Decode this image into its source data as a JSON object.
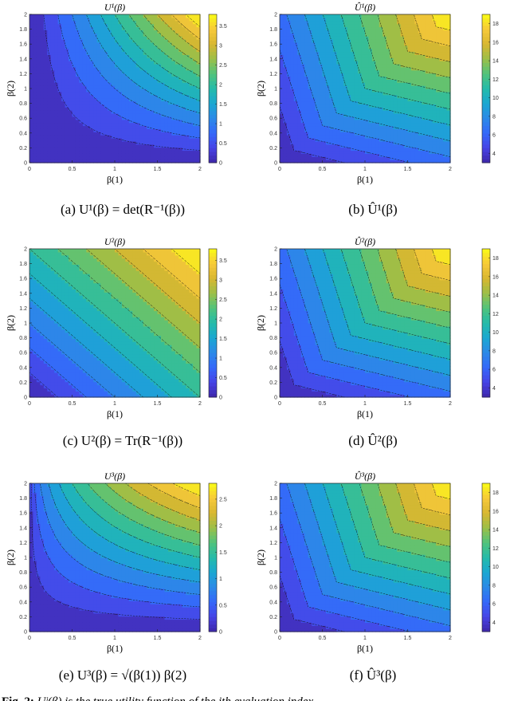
{
  "panels": [
    {
      "id": "a",
      "title": "U¹(β)",
      "caption": "(a) U¹(β) = det(R⁻¹(β))",
      "xlabel": "β(1)",
      "ylabel": "β(2)",
      "xticks": [
        "0",
        "0.5",
        "1",
        "1.5",
        "2"
      ],
      "yticks": [
        "0",
        "0.2",
        "0.4",
        "0.6",
        "0.8",
        "1",
        "1.2",
        "1.4",
        "1.6",
        "1.8",
        "2"
      ],
      "cbticks": [
        "0",
        "0.5",
        "1",
        "1.5",
        "2",
        "2.5",
        "3",
        "3.5"
      ],
      "cbrange": [
        0,
        3.8
      ],
      "fn": "prod"
    },
    {
      "id": "b",
      "title": "Û¹(β)",
      "caption": "(b) Û¹(β)",
      "xlabel": "β(1)",
      "ylabel": "β(2)",
      "xticks": [
        "0",
        "0.5",
        "1",
        "1.5",
        "2"
      ],
      "yticks": [
        "0",
        "0.2",
        "0.4",
        "0.6",
        "0.8",
        "1",
        "1.2",
        "1.4",
        "1.6",
        "1.8",
        "2"
      ],
      "cbticks": [
        "4",
        "6",
        "8",
        "10",
        "12",
        "14",
        "16",
        "18"
      ],
      "cbrange": [
        3,
        19
      ],
      "fn": "min"
    },
    {
      "id": "c",
      "title": "U²(β)",
      "caption": "(c) U²(β) = Tr(R⁻¹(β))",
      "xlabel": "β(1)",
      "ylabel": "β(2)",
      "xticks": [
        "0",
        "0.5",
        "1",
        "1.5",
        "2"
      ],
      "yticks": [
        "0",
        "0.2",
        "0.4",
        "0.6",
        "0.8",
        "1",
        "1.2",
        "1.4",
        "1.6",
        "1.8",
        "2"
      ],
      "cbticks": [
        "0",
        "0.5",
        "1",
        "1.5",
        "2",
        "2.5",
        "3",
        "3.5"
      ],
      "cbrange": [
        0,
        3.8
      ],
      "fn": "sum"
    },
    {
      "id": "d",
      "title": "Û²(β)",
      "caption": "(d) Û²(β)",
      "xlabel": "β(1)",
      "ylabel": "β(2)",
      "xticks": [
        "0",
        "0.5",
        "1",
        "1.5",
        "2"
      ],
      "yticks": [
        "0",
        "0.2",
        "0.4",
        "0.6",
        "0.8",
        "1",
        "1.2",
        "1.4",
        "1.6",
        "1.8",
        "2"
      ],
      "cbticks": [
        "4",
        "6",
        "8",
        "10",
        "12",
        "14",
        "16",
        "18"
      ],
      "cbrange": [
        3,
        19
      ],
      "fn": "min"
    },
    {
      "id": "e",
      "title": "U³(β)",
      "caption": "(e) U³(β) = √(β(1)) β(2)",
      "xlabel": "β(1)",
      "ylabel": "β(2)",
      "xticks": [
        "0",
        "0.5",
        "1",
        "1.5",
        "2"
      ],
      "yticks": [
        "0",
        "0.2",
        "0.4",
        "0.6",
        "0.8",
        "1",
        "1.2",
        "1.4",
        "1.6",
        "1.8",
        "2"
      ],
      "cbticks": [
        "0",
        "0.5",
        "1",
        "1.5",
        "2",
        "2.5"
      ],
      "cbrange": [
        0,
        2.8
      ],
      "fn": "sqrtprod"
    },
    {
      "id": "f",
      "title": "Û³(β)",
      "caption": "(f) Û³(β)",
      "xlabel": "β(1)",
      "ylabel": "β(2)",
      "xticks": [
        "0",
        "0.5",
        "1",
        "1.5",
        "2"
      ],
      "yticks": [
        "0",
        "0.2",
        "0.4",
        "0.6",
        "0.8",
        "1",
        "1.2",
        "1.4",
        "1.6",
        "1.8",
        "2"
      ],
      "cbticks": [
        "4",
        "6",
        "8",
        "10",
        "12",
        "14",
        "16",
        "18"
      ],
      "cbrange": [
        3,
        19
      ],
      "fn": "min"
    }
  ],
  "figure_caption": {
    "label": "Fig. 2:",
    "text": "Uʲ(β) is the true utility function of the jth evaluation index"
  },
  "colormap": [
    "#3e26a8",
    "#4743e5",
    "#3568f9",
    "#2c89e8",
    "#1ba7d2",
    "#24bbaa",
    "#51c37c",
    "#9bbf48",
    "#d8b731",
    "#f7c93a",
    "#f9fb15"
  ]
}
